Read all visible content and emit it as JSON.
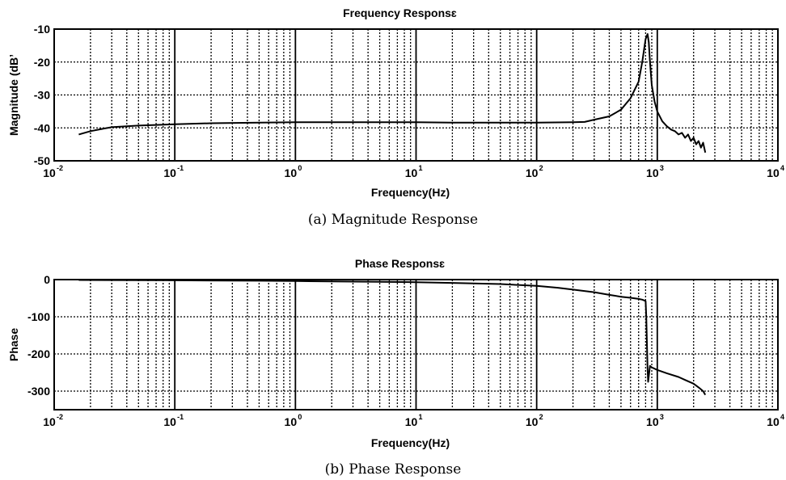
{
  "chart_data": [
    {
      "type": "line",
      "title": "Frequency Responsɛ",
      "xlabel": "Frequency(Hz)",
      "ylabel": "Magnitude (dBʼ",
      "caption": "(a) Magnitude Response",
      "xscale": "log",
      "xlim": [
        0.01,
        10000
      ],
      "ylim": [
        -50,
        -10
      ],
      "yticks": [
        -10,
        -20,
        -30,
        -40,
        -50
      ],
      "xticks": [
        {
          "base": "10",
          "exp": "-2"
        },
        {
          "base": "10",
          "exp": "-1"
        },
        {
          "base": "10",
          "exp": "0"
        },
        {
          "base": "10",
          "exp": "1"
        },
        {
          "base": "10",
          "exp": "2"
        },
        {
          "base": "10",
          "exp": "3"
        },
        {
          "base": "10",
          "exp": "4"
        }
      ],
      "grid": true,
      "series": [
        {
          "x": [
            0.016,
            0.02,
            0.025,
            0.03,
            0.04,
            0.05,
            0.07,
            0.1,
            0.2,
            0.5,
            1,
            2,
            5,
            10,
            20,
            50,
            100,
            200,
            250,
            300,
            400,
            500,
            600,
            700,
            750,
            800,
            830,
            850,
            870,
            900,
            950,
            1000,
            1100,
            1200,
            1300,
            1400,
            1500,
            1600,
            1700,
            1800,
            1900,
            2000,
            2100,
            2200,
            2300,
            2400,
            2500
          ],
          "y": [
            -42,
            -41,
            -40.3,
            -39.8,
            -39.5,
            -39.3,
            -39.1,
            -38.9,
            -38.6,
            -38.4,
            -38.3,
            -38.3,
            -38.3,
            -38.3,
            -38.4,
            -38.4,
            -38.4,
            -38.3,
            -38.2,
            -37.5,
            -36.5,
            -34.5,
            -31,
            -26,
            -20,
            -13,
            -11.5,
            -14,
            -20,
            -27,
            -32,
            -35,
            -38,
            -39.5,
            -40.5,
            -41,
            -42,
            -41.5,
            -43,
            -42,
            -44,
            -43,
            -45,
            -44,
            -46,
            -44.5,
            -47.5
          ]
        }
      ]
    },
    {
      "type": "line",
      "title": "Phase Responsɛ",
      "xlabel": "Frequency(Hz)",
      "ylabel": "Phase",
      "caption": "(b) Phase Response",
      "xscale": "log",
      "xlim": [
        0.01,
        10000
      ],
      "ylim": [
        -350,
        0
      ],
      "yticks": [
        0,
        -100,
        -200,
        -300
      ],
      "xticks": [
        {
          "base": "10",
          "exp": "-2"
        },
        {
          "base": "10",
          "exp": "-1"
        },
        {
          "base": "10",
          "exp": "0"
        },
        {
          "base": "10",
          "exp": "1"
        },
        {
          "base": "10",
          "exp": "2"
        },
        {
          "base": "10",
          "exp": "3"
        },
        {
          "base": "10",
          "exp": "4"
        }
      ],
      "grid": true,
      "series": [
        {
          "x": [
            0.016,
            0.05,
            0.1,
            0.5,
            1,
            2,
            5,
            10,
            20,
            50,
            100,
            150,
            200,
            300,
            400,
            500,
            600,
            700,
            750,
            780,
            800,
            810,
            820,
            830,
            840,
            850,
            870,
            900,
            1000,
            1200,
            1500,
            1700,
            2000,
            2200,
            2400,
            2500
          ],
          "y": [
            -1,
            -1.5,
            -2,
            -3,
            -4,
            -5,
            -6,
            -7,
            -9,
            -12,
            -17,
            -22,
            -27,
            -34,
            -41,
            -46,
            -49,
            -52,
            -54,
            -56,
            -58,
            -100,
            -170,
            -240,
            -275,
            -260,
            -232,
            -236,
            -243,
            -252,
            -262,
            -270,
            -280,
            -290,
            -300,
            -310
          ]
        }
      ]
    }
  ]
}
